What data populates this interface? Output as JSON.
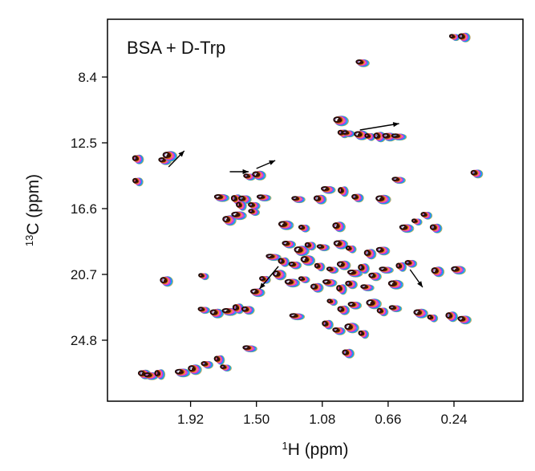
{
  "chart_data": {
    "type": "scatter",
    "subtype": "2D NMR HSQC spectrum (overlaid contour series)",
    "annotation_label": "BSA + D-Trp",
    "x_axis": {
      "label_sup": "1",
      "label_main": "H (ppm)",
      "reversed": true,
      "range": [
        2.45,
        -0.2
      ],
      "ticks": [
        1.92,
        1.5,
        1.08,
        0.66,
        0.24
      ],
      "tick_labels": [
        "1.92",
        "1.50",
        "1.08",
        "0.66",
        "0.24"
      ]
    },
    "y_axis": {
      "label_sup": "13",
      "label_main": "C (ppm)",
      "reversed": true,
      "range": [
        4.8,
        28.6
      ],
      "ticks": [
        8.4,
        12.5,
        16.6,
        20.7,
        24.8
      ],
      "tick_labels": [
        "8.4",
        "12.5",
        "16.6",
        "20.7",
        "24.8"
      ]
    },
    "grid": false,
    "series_colors": [
      "#1a0a0a",
      "#6a1f0a",
      "#8b3a1a",
      "#d2691e",
      "#ff8c00",
      "#e040fb",
      "#ff4081",
      "#7c4dff",
      "#2979ff",
      "#00bcd4",
      "#c0a060"
    ],
    "peaks": [
      {
        "x": 0.24,
        "y": 5.9
      },
      {
        "x": 0.18,
        "y": 5.9
      },
      {
        "x": 0.83,
        "y": 7.5
      },
      {
        "x": 0.97,
        "y": 11.1
      },
      {
        "x": 0.95,
        "y": 11.9
      },
      {
        "x": 0.92,
        "y": 11.9
      },
      {
        "x": 0.84,
        "y": 12.0
      },
      {
        "x": 0.78,
        "y": 12.1
      },
      {
        "x": 0.72,
        "y": 12.1
      },
      {
        "x": 0.66,
        "y": 12.1
      },
      {
        "x": 0.6,
        "y": 12.1
      },
      {
        "x": 2.26,
        "y": 13.5
      },
      {
        "x": 2.09,
        "y": 13.6
      },
      {
        "x": 2.06,
        "y": 13.3
      },
      {
        "x": 2.26,
        "y": 14.9
      },
      {
        "x": 1.55,
        "y": 14.6
      },
      {
        "x": 1.49,
        "y": 14.5
      },
      {
        "x": 1.73,
        "y": 15.9
      },
      {
        "x": 1.63,
        "y": 16.0
      },
      {
        "x": 1.58,
        "y": 16.0
      },
      {
        "x": 1.46,
        "y": 15.9
      },
      {
        "x": 1.6,
        "y": 16.4
      },
      {
        "x": 1.52,
        "y": 16.4
      },
      {
        "x": 1.68,
        "y": 17.3
      },
      {
        "x": 1.62,
        "y": 17.0
      },
      {
        "x": 1.52,
        "y": 16.8
      },
      {
        "x": 1.1,
        "y": 16.0
      },
      {
        "x": 1.05,
        "y": 15.4
      },
      {
        "x": 0.95,
        "y": 15.5
      },
      {
        "x": 0.86,
        "y": 15.9
      },
      {
        "x": 1.24,
        "y": 16.0
      },
      {
        "x": 1.32,
        "y": 17.6
      },
      {
        "x": 1.2,
        "y": 17.8
      },
      {
        "x": 0.98,
        "y": 17.7
      },
      {
        "x": 0.55,
        "y": 17.8
      },
      {
        "x": 0.48,
        "y": 17.4
      },
      {
        "x": 0.36,
        "y": 17.8
      },
      {
        "x": 1.3,
        "y": 18.8
      },
      {
        "x": 1.22,
        "y": 19.2
      },
      {
        "x": 1.16,
        "y": 18.9
      },
      {
        "x": 1.08,
        "y": 19.0
      },
      {
        "x": 0.97,
        "y": 18.8
      },
      {
        "x": 0.9,
        "y": 19.1
      },
      {
        "x": 0.78,
        "y": 19.4
      },
      {
        "x": 0.7,
        "y": 19.2
      },
      {
        "x": 1.4,
        "y": 19.6
      },
      {
        "x": 1.33,
        "y": 19.9
      },
      {
        "x": 1.26,
        "y": 20.1
      },
      {
        "x": 1.18,
        "y": 19.8
      },
      {
        "x": 1.1,
        "y": 20.2
      },
      {
        "x": 1.02,
        "y": 20.4
      },
      {
        "x": 0.95,
        "y": 20.1
      },
      {
        "x": 0.88,
        "y": 20.6
      },
      {
        "x": 0.82,
        "y": 20.3
      },
      {
        "x": 0.75,
        "y": 20.8
      },
      {
        "x": 0.68,
        "y": 20.4
      },
      {
        "x": 0.58,
        "y": 20.2
      },
      {
        "x": 0.52,
        "y": 20.0
      },
      {
        "x": 1.36,
        "y": 20.7
      },
      {
        "x": 1.28,
        "y": 21.2
      },
      {
        "x": 1.2,
        "y": 21.0
      },
      {
        "x": 1.12,
        "y": 21.5
      },
      {
        "x": 1.04,
        "y": 21.2
      },
      {
        "x": 0.96,
        "y": 21.6
      },
      {
        "x": 0.9,
        "y": 21.3
      },
      {
        "x": 0.8,
        "y": 21.5
      },
      {
        "x": 0.62,
        "y": 21.3
      },
      {
        "x": 1.45,
        "y": 21.0
      },
      {
        "x": 2.08,
        "y": 21.1
      },
      {
        "x": 1.5,
        "y": 21.8
      },
      {
        "x": 1.02,
        "y": 22.4
      },
      {
        "x": 0.95,
        "y": 22.9
      },
      {
        "x": 0.88,
        "y": 22.6
      },
      {
        "x": 0.76,
        "y": 22.5
      },
      {
        "x": 0.7,
        "y": 23.0
      },
      {
        "x": 0.62,
        "y": 22.8
      },
      {
        "x": 0.46,
        "y": 23.1
      },
      {
        "x": 0.38,
        "y": 23.4
      },
      {
        "x": 0.26,
        "y": 23.3
      },
      {
        "x": 0.18,
        "y": 23.5
      },
      {
        "x": 1.25,
        "y": 23.3
      },
      {
        "x": 1.05,
        "y": 23.8
      },
      {
        "x": 0.98,
        "y": 24.2
      },
      {
        "x": 0.9,
        "y": 24.0
      },
      {
        "x": 0.82,
        "y": 24.4
      },
      {
        "x": 1.84,
        "y": 22.9
      },
      {
        "x": 1.76,
        "y": 23.1
      },
      {
        "x": 1.68,
        "y": 23.0
      },
      {
        "x": 1.62,
        "y": 22.8
      },
      {
        "x": 1.56,
        "y": 22.9
      },
      {
        "x": 1.55,
        "y": 25.3
      },
      {
        "x": 1.74,
        "y": 26.0
      },
      {
        "x": 1.82,
        "y": 26.3
      },
      {
        "x": 1.9,
        "y": 26.6
      },
      {
        "x": 1.98,
        "y": 26.8
      },
      {
        "x": 1.7,
        "y": 26.5
      },
      {
        "x": 2.22,
        "y": 26.9
      },
      {
        "x": 2.18,
        "y": 27.0
      },
      {
        "x": 2.12,
        "y": 26.9
      },
      {
        "x": 0.1,
        "y": 14.4
      },
      {
        "x": 0.6,
        "y": 14.8
      },
      {
        "x": 0.7,
        "y": 16.0
      },
      {
        "x": 0.42,
        "y": 17.0
      },
      {
        "x": 0.35,
        "y": 20.5
      },
      {
        "x": 0.22,
        "y": 20.4
      },
      {
        "x": 1.84,
        "y": 20.8
      },
      {
        "x": 0.92,
        "y": 25.6
      }
    ],
    "arrows": [
      {
        "x1": 0.84,
        "y1": 11.7,
        "x2": 0.59,
        "y2": 11.3
      },
      {
        "x1": 2.06,
        "y1": 14.0,
        "x2": 1.96,
        "y2": 13.0
      },
      {
        "x1": 1.67,
        "y1": 14.3,
        "x2": 1.55,
        "y2": 14.3
      },
      {
        "x1": 1.5,
        "y1": 14.1,
        "x2": 1.38,
        "y2": 13.6
      },
      {
        "x1": 1.36,
        "y1": 20.2,
        "x2": 1.48,
        "y2": 21.6
      },
      {
        "x1": 0.52,
        "y1": 20.4,
        "x2": 0.44,
        "y2": 21.5
      }
    ]
  }
}
